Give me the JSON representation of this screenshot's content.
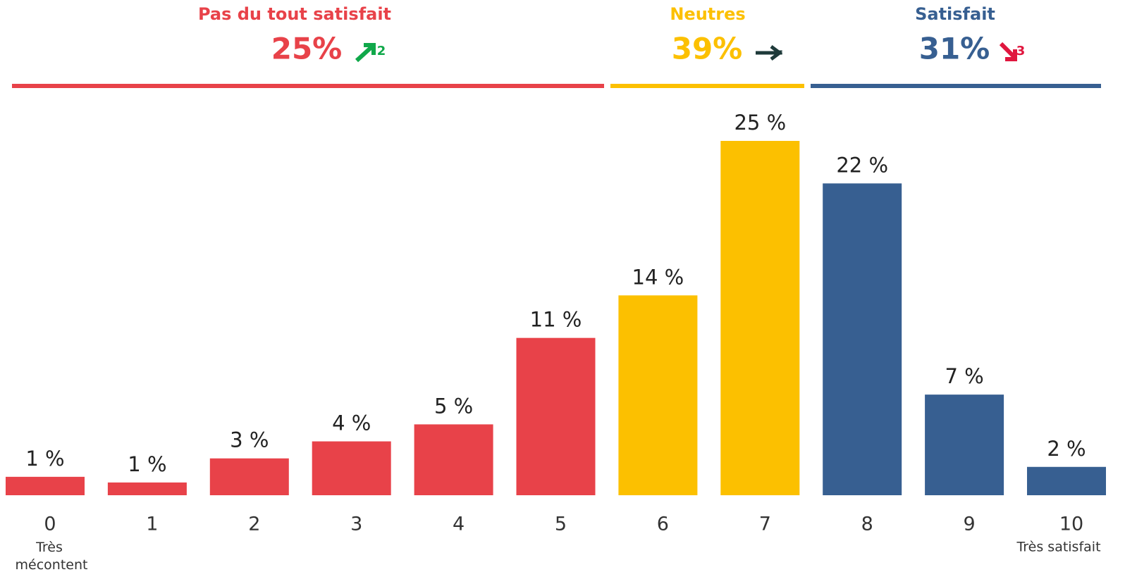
{
  "chart_data": {
    "type": "bar",
    "categories": [
      "0",
      "1",
      "2",
      "3",
      "4",
      "5",
      "6",
      "7",
      "8",
      "9",
      "10"
    ],
    "values": [
      1.3,
      0.9,
      2.6,
      3.8,
      5.0,
      11.1,
      14.1,
      25,
      22.0,
      7.1,
      2.0
    ],
    "value_labels": [
      "1 %",
      "1 %",
      "3 %",
      "4 %",
      "5 %",
      "11 %",
      "14 %",
      "25 %",
      "22 %",
      "7 %",
      "2 %"
    ],
    "colors": [
      "#e84249",
      "#e84249",
      "#e84249",
      "#e84249",
      "#e84249",
      "#e84249",
      "#fcc000",
      "#fcc000",
      "#375f91",
      "#375f91",
      "#375f91"
    ],
    "category_notes": {
      "first": "Très mécontent",
      "last": "Très satisfait"
    },
    "groups": [
      {
        "name": "Pas du tout satisfait",
        "value": 25,
        "value_label": "25%",
        "trend": 2,
        "color": "#e84249"
      },
      {
        "name": "Neutres",
        "value": 39,
        "value_label": "39%",
        "trend": "=",
        "color": "#fcc000"
      },
      {
        "name": "Satisfait",
        "value": 31,
        "value_label": "31%",
        "trend": 3,
        "color": "#375f91"
      }
    ]
  }
}
